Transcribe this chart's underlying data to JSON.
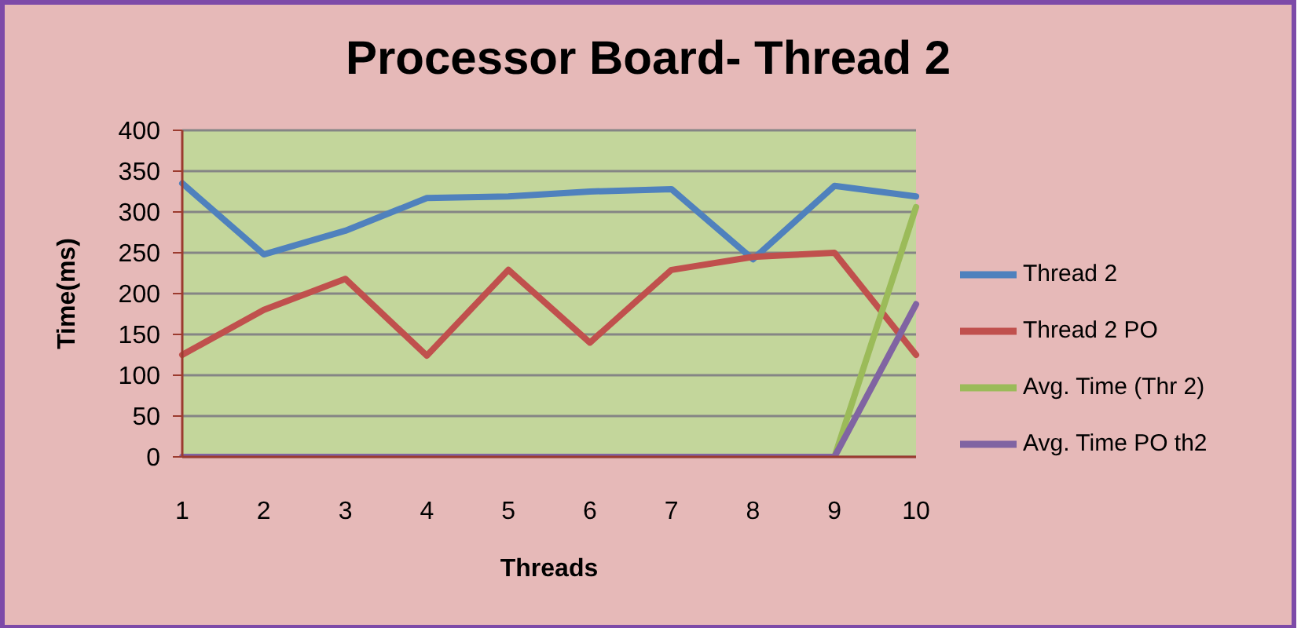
{
  "chart_data": {
    "type": "line",
    "title": "Processor Board- Thread 2",
    "xlabel": "Threads",
    "ylabel": "Time(ms)",
    "categories": [
      "1",
      "2",
      "3",
      "4",
      "5",
      "6",
      "7",
      "8",
      "9",
      "10"
    ],
    "series": [
      {
        "name": "Thread 2",
        "color": "#4f81bd",
        "values": [
          335,
          248,
          277,
          317,
          319,
          325,
          328,
          242,
          332,
          319
        ]
      },
      {
        "name": "Thread 2 PO",
        "color": "#c0504d",
        "values": [
          125,
          180,
          218,
          124,
          229,
          140,
          229,
          245,
          250,
          125
        ]
      },
      {
        "name": "Avg. Time (Thr 2)",
        "color": "#9bbb59",
        "values": [
          null,
          null,
          null,
          null,
          null,
          null,
          null,
          null,
          0,
          306
        ]
      },
      {
        "name": "Avg. Time PO th2",
        "color": "#8064a2",
        "values": [
          0,
          0,
          0,
          0,
          0,
          0,
          0,
          0,
          0,
          187
        ]
      }
    ],
    "ylim": [
      0,
      400
    ],
    "yticks": [
      0,
      50,
      100,
      150,
      200,
      250,
      300,
      350,
      400
    ],
    "grid": "y",
    "legend": "right",
    "marker": "none",
    "line_style": "solid"
  }
}
